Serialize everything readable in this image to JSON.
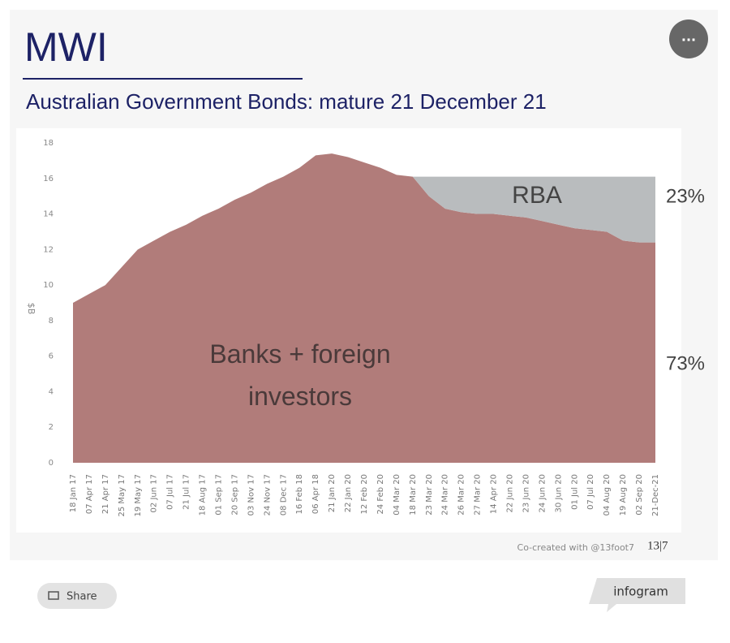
{
  "header": {
    "brand": "MWI",
    "menu": "..."
  },
  "chart_data": {
    "type": "stacked-area",
    "title": "Australian Government Bonds: mature 21 December 21",
    "y_label": "$B",
    "categories": [
      "18 Jan 17",
      "07 Apr 17",
      "21 Apr 17",
      "25 May 17",
      "19 May 17",
      "02 Jun 17",
      "07 Jul 17",
      "21 Jul 17",
      "18 Aug 17",
      "01 Sep 17",
      "20 Sep 17",
      "03 Nov 17",
      "24 Nov 17",
      "08 Dec 17",
      "16 Feb 18",
      "06 Apr 18",
      "21 Jan 20",
      "22 Jan 20",
      "12 Feb 20",
      "24 Feb 20",
      "04 Mar 20",
      "18 Mar 20",
      "23 Mar 20",
      "24 Mar 20",
      "26 Mar 20",
      "27 Mar 20",
      "14 Apr 20",
      "22 Jun 20",
      "23 Jun 20",
      "24 Jun 20",
      "30 Jun 20",
      "01 Jul 20",
      "07 Jul 20",
      "04 Aug 20",
      "19 Aug 20",
      "02 Sep 20",
      "21-Dec-21"
    ],
    "series": [
      {
        "name": "Banks + foreign investors",
        "color": "#b17c7a",
        "values": [
          9.0,
          9.5,
          10.0,
          11.0,
          12.0,
          12.5,
          13.0,
          13.4,
          13.9,
          14.3,
          14.8,
          15.2,
          15.7,
          16.1,
          16.6,
          17.3,
          17.4,
          17.2,
          16.9,
          16.6,
          16.2,
          16.1,
          15.0,
          14.3,
          14.1,
          14.0,
          14.0,
          13.9,
          13.8,
          13.6,
          13.4,
          13.2,
          13.1,
          13.0,
          12.5,
          12.4,
          12.4
        ]
      },
      {
        "name": "RBA",
        "color": "#b9bcbe",
        "values": [
          0,
          0,
          0,
          0,
          0,
          0,
          0,
          0,
          0,
          0,
          0,
          0,
          0,
          0,
          0,
          0,
          0,
          0,
          0,
          0,
          0,
          0,
          1.1,
          1.8,
          2.0,
          2.1,
          2.1,
          2.2,
          2.3,
          2.5,
          2.7,
          2.9,
          3.0,
          3.1,
          3.6,
          3.7,
          3.7
        ]
      }
    ],
    "annotations": [
      "23%",
      "73%"
    ],
    "ylim": [
      0,
      18
    ],
    "yticks": [
      0,
      2,
      4,
      6,
      8,
      10,
      12,
      14,
      16,
      18
    ]
  },
  "footer": {
    "credit": "Co-created with @13foot7",
    "logo": "13|7",
    "share": "Share",
    "badge": "infogram"
  }
}
